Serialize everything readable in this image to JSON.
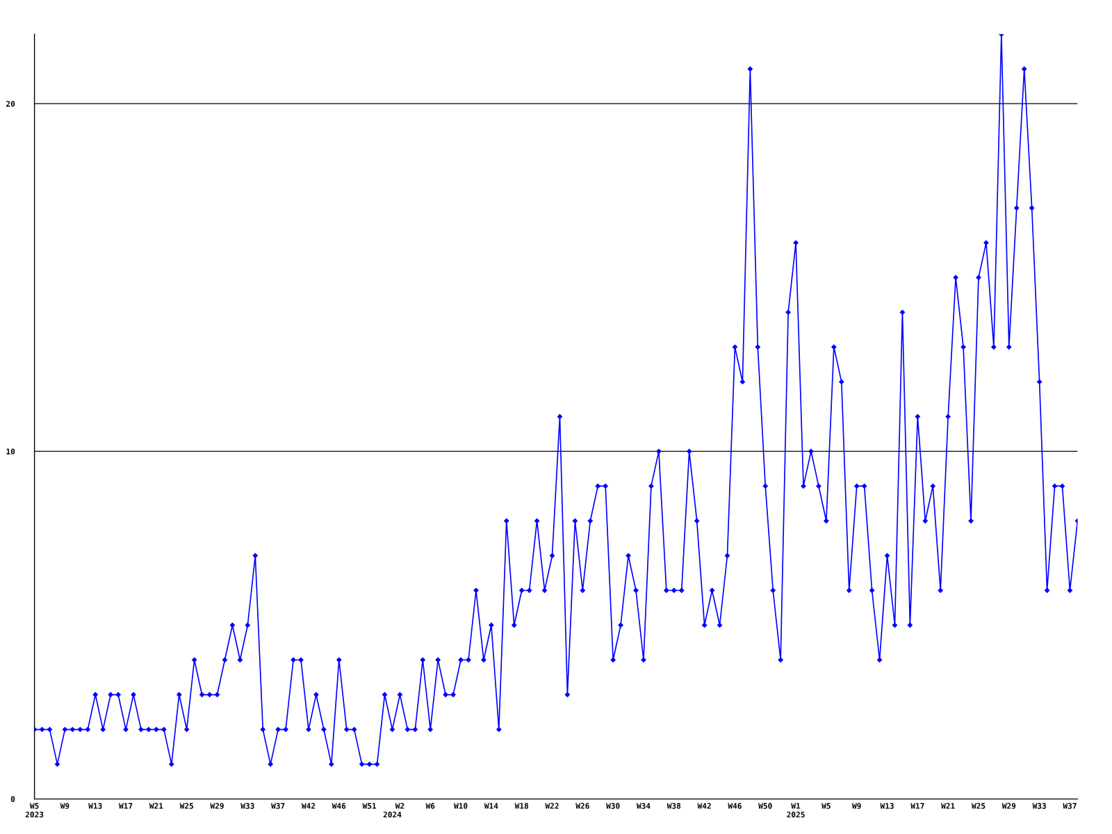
{
  "chart_data": {
    "type": "line",
    "categories": [
      "W5\n2023",
      null,
      null,
      null,
      "W9",
      null,
      null,
      null,
      "W13",
      null,
      null,
      null,
      "W17",
      null,
      null,
      null,
      "W21",
      null,
      null,
      null,
      "W25",
      null,
      null,
      null,
      "W29",
      null,
      null,
      null,
      "W33",
      null,
      null,
      null,
      "W37",
      null,
      null,
      null,
      "W42",
      null,
      null,
      null,
      "W46",
      null,
      null,
      null,
      "W51",
      null,
      null,
      "\n2024",
      "W2",
      null,
      null,
      null,
      "W6",
      null,
      null,
      null,
      "W10",
      null,
      null,
      null,
      "W14",
      null,
      null,
      null,
      "W18",
      null,
      null,
      null,
      "W22",
      null,
      null,
      null,
      "W26",
      null,
      null,
      null,
      "W30",
      null,
      null,
      null,
      "W34",
      null,
      null,
      null,
      "W38",
      null,
      null,
      null,
      "W42",
      null,
      null,
      null,
      "W46",
      null,
      null,
      null,
      "W50",
      null,
      null,
      null,
      "W1\n2025",
      null,
      null,
      null,
      "W5",
      null,
      null,
      null,
      "W9",
      null,
      null,
      null,
      "W13",
      null,
      null,
      null,
      "W17",
      null,
      null,
      null,
      "W21",
      null,
      null,
      null,
      "W25",
      null,
      null,
      null,
      "W29",
      null,
      null,
      null,
      "W33",
      null,
      null,
      null,
      "W37",
      null
    ],
    "series": [
      {
        "color": "#0000ff",
        "values": [
          2,
          2,
          2,
          1,
          2,
          2,
          2,
          2,
          3,
          2,
          3,
          3,
          2,
          3,
          2,
          2,
          2,
          2,
          1,
          3,
          2,
          4,
          3,
          3,
          3,
          4,
          5,
          4,
          5,
          7,
          2,
          1,
          2,
          2,
          4,
          4,
          2,
          3,
          2,
          1,
          4,
          2,
          2,
          1,
          1,
          1,
          3,
          2,
          3,
          2,
          2,
          4,
          2,
          4,
          3,
          3,
          4,
          4,
          6,
          4,
          5,
          2,
          8,
          5,
          6,
          6,
          8,
          6,
          7,
          11,
          3,
          8,
          6,
          8,
          9,
          9,
          4,
          5,
          7,
          6,
          4,
          9,
          10,
          6,
          6,
          6,
          10,
          8,
          5,
          6,
          5,
          7,
          13,
          12,
          21,
          13,
          9,
          6,
          4,
          14,
          16,
          9,
          10,
          9,
          8,
          13,
          12,
          6,
          9,
          9,
          6,
          4,
          7,
          5,
          14,
          5,
          11,
          8,
          9,
          6,
          11,
          15,
          13,
          8,
          15,
          16,
          13,
          22,
          13,
          17,
          21,
          17,
          12,
          6,
          9,
          9,
          6,
          8
        ]
      }
    ],
    "ylim": [
      0,
      22
    ],
    "yticks": [
      0,
      10,
      20
    ],
    "grid": "y",
    "marker": "diamond",
    "line_style": "solid",
    "legend": false
  }
}
